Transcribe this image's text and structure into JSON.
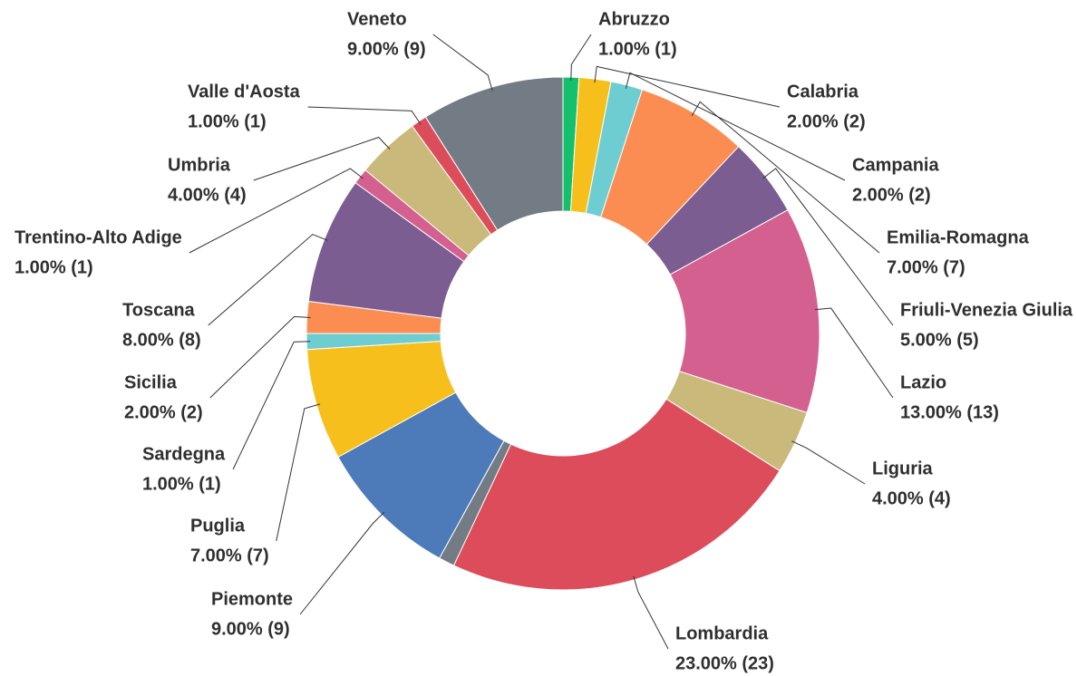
{
  "chart_data": {
    "type": "donut",
    "categories": [
      "Abruzzo",
      "Calabria",
      "Campania",
      "Emilia-Romagna",
      "Friuli-Venezia Giulia",
      "Lazio",
      "Liguria",
      "Lombardia",
      null,
      "Piemonte",
      "Puglia",
      "Sardegna",
      "Sicilia",
      "Toscana",
      "Trentino-Alto Adige",
      "Umbria",
      "Valle d'Aosta",
      "Veneto"
    ],
    "values": [
      1,
      2,
      2,
      7,
      5,
      13,
      4,
      23,
      1,
      9,
      7,
      1,
      2,
      8,
      1,
      4,
      1,
      9
    ],
    "value_labels": [
      "1.00% (1)",
      "2.00% (2)",
      "2.00% (2)",
      "7.00% (7)",
      "5.00% (5)",
      "13.00% (13)",
      "4.00% (4)",
      "23.00% (23)",
      null,
      "9.00% (9)",
      "7.00% (7)",
      "1.00% (1)",
      "2.00% (2)",
      "8.00% (8)",
      "1.00% (1)",
      "4.00% (4)",
      "1.00% (1)",
      "9.00% (9)"
    ],
    "colors": [
      "#14c06b",
      "#f6bf1b",
      "#6dcdd1",
      "#fb8d52",
      "#7c5d91",
      "#d4608f",
      "#c9b97b",
      "#dc4c5a",
      "#737c84",
      "#4d7ab8",
      "#f6bf1b",
      "#6dcdd1",
      "#fb8d52",
      "#7c5d91",
      "#d4608f",
      "#c9b97b",
      "#dc4c5a",
      "#737c84"
    ]
  }
}
